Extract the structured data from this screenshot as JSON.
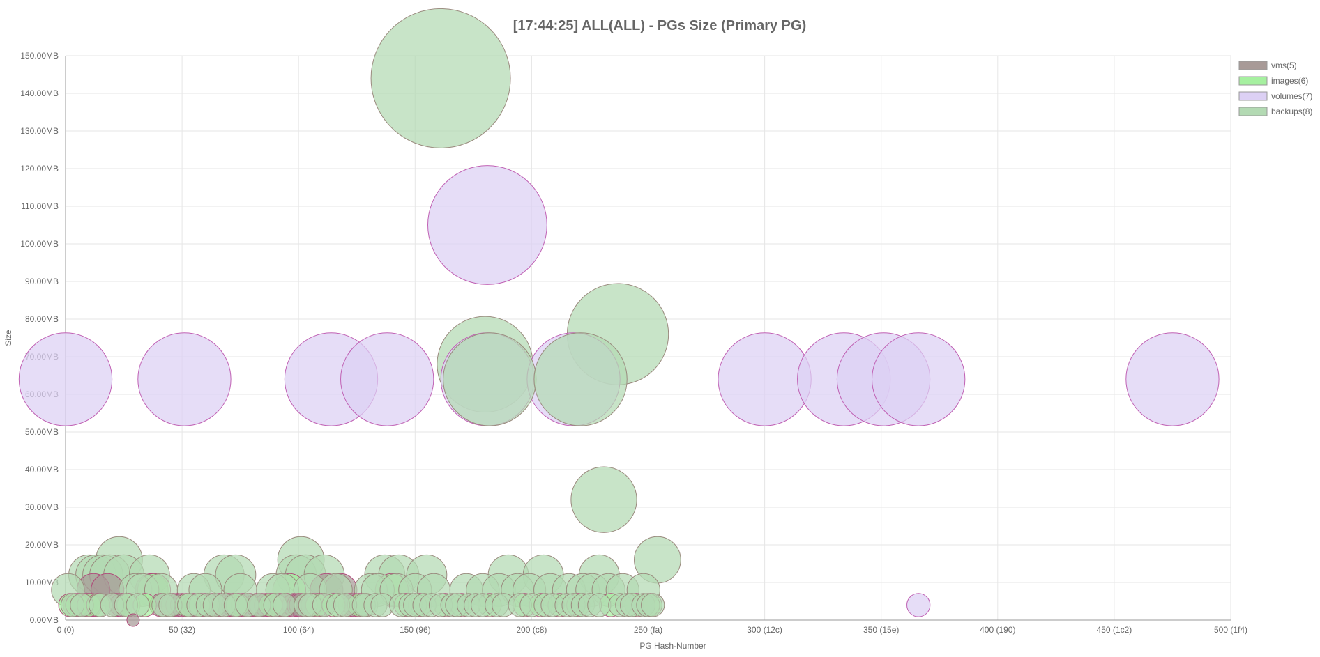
{
  "chart_data": {
    "type": "scatter",
    "subtype": "bubble",
    "title": "[17:44:25]  ALL(ALL) - PGs Size (Primary PG)",
    "xlabel": "PG Hash-Number",
    "ylabel": "Size",
    "xlim": [
      0,
      500
    ],
    "ylim": [
      0,
      150
    ],
    "x_ticks": [
      {
        "value": 0,
        "label": "0 (0)"
      },
      {
        "value": 50,
        "label": "50 (32)"
      },
      {
        "value": 100,
        "label": "100 (64)"
      },
      {
        "value": 150,
        "label": "150 (96)"
      },
      {
        "value": 200,
        "label": "200 (c8)"
      },
      {
        "value": 250,
        "label": "250 (fa)"
      },
      {
        "value": 300,
        "label": "300 (12c)"
      },
      {
        "value": 350,
        "label": "350 (15e)"
      },
      {
        "value": 400,
        "label": "400 (190)"
      },
      {
        "value": 450,
        "label": "450 (1c2)"
      },
      {
        "value": 500,
        "label": "500 (1f4)"
      }
    ],
    "y_ticks": [
      {
        "value": 0,
        "label": "0.00MB"
      },
      {
        "value": 10,
        "label": "10.00MB"
      },
      {
        "value": 20,
        "label": "20.00MB"
      },
      {
        "value": 30,
        "label": "30.00MB"
      },
      {
        "value": 40,
        "label": "40.00MB"
      },
      {
        "value": 50,
        "label": "50.00MB"
      },
      {
        "value": 60,
        "label": "60.00MB"
      },
      {
        "value": 70,
        "label": "70.00MB"
      },
      {
        "value": 80,
        "label": "80.00MB"
      },
      {
        "value": 90,
        "label": "90.00MB"
      },
      {
        "value": 100,
        "label": "100.00MB"
      },
      {
        "value": 110,
        "label": "110.00MB"
      },
      {
        "value": 120,
        "label": "120.00MB"
      },
      {
        "value": 130,
        "label": "130.00MB"
      },
      {
        "value": 140,
        "label": "140.00MB"
      },
      {
        "value": 150,
        "label": "150.00MB"
      }
    ],
    "grid": true,
    "legend_position": "top-right",
    "series": [
      {
        "name": "vms(5)",
        "fill": "#a89a97",
        "stroke": "#b04a7a",
        "points": [
          [
            4,
            4
          ],
          [
            6,
            4
          ],
          [
            8,
            4
          ],
          [
            9,
            4
          ],
          [
            11,
            4
          ],
          [
            12,
            8
          ],
          [
            18,
            8
          ],
          [
            22,
            4
          ],
          [
            24,
            4
          ],
          [
            29,
            0
          ],
          [
            37,
            8
          ],
          [
            41,
            4
          ],
          [
            46,
            4
          ],
          [
            48,
            4
          ],
          [
            50,
            4
          ],
          [
            55,
            4
          ],
          [
            60,
            4
          ],
          [
            63,
            4
          ],
          [
            66,
            4
          ],
          [
            70,
            4
          ],
          [
            72,
            4
          ],
          [
            76,
            4
          ],
          [
            79,
            4
          ],
          [
            82,
            4
          ],
          [
            84,
            4
          ],
          [
            86,
            4
          ],
          [
            89,
            4
          ],
          [
            92,
            4
          ],
          [
            95,
            4
          ],
          [
            98,
            4
          ],
          [
            100,
            4
          ],
          [
            101,
            4
          ],
          [
            106,
            4
          ],
          [
            110,
            4
          ],
          [
            112,
            8
          ],
          [
            118,
            8
          ],
          [
            122,
            4
          ],
          [
            124,
            4
          ],
          [
            127,
            4
          ]
        ]
      },
      {
        "name": "images(6)",
        "fill": "#a6f0a0",
        "stroke": "#b04a7a",
        "points": [
          [
            2,
            4
          ],
          [
            5,
            4
          ],
          [
            10,
            4
          ],
          [
            14,
            4
          ],
          [
            27,
            4
          ],
          [
            34,
            4
          ],
          [
            38,
            8
          ],
          [
            52,
            4
          ],
          [
            58,
            4
          ],
          [
            74,
            4
          ],
          [
            88,
            4
          ],
          [
            96,
            8
          ],
          [
            108,
            4
          ],
          [
            115,
            4
          ],
          [
            126,
            4
          ],
          [
            140,
            8
          ],
          [
            146,
            4
          ],
          [
            152,
            4
          ],
          [
            163,
            4
          ],
          [
            170,
            4
          ],
          [
            182,
            4
          ],
          [
            197,
            4
          ],
          [
            204,
            4
          ],
          [
            212,
            4
          ],
          [
            220,
            4
          ],
          [
            234,
            4
          ],
          [
            245,
            4
          ],
          [
            251,
            4
          ]
        ]
      },
      {
        "name": "volumes(7)",
        "fill": "#dcd0f4",
        "stroke": "#c061b4",
        "points": [
          [
            0,
            64
          ],
          [
            51,
            64
          ],
          [
            114,
            64
          ],
          [
            138,
            64
          ],
          [
            181,
            105
          ],
          [
            181,
            64
          ],
          [
            218,
            64
          ],
          [
            300,
            64
          ],
          [
            334,
            64
          ],
          [
            351,
            64
          ],
          [
            366,
            64
          ],
          [
            475,
            64
          ],
          [
            366,
            4
          ]
        ]
      },
      {
        "name": "backups(8)",
        "fill": "#b3dab3",
        "stroke": "#9a8a7e",
        "points": [
          [
            161,
            144
          ],
          [
            237,
            76
          ],
          [
            180,
            68
          ],
          [
            182,
            64
          ],
          [
            221,
            64
          ],
          [
            231,
            32
          ],
          [
            23,
            16
          ],
          [
            101,
            16
          ],
          [
            254,
            16
          ],
          [
            1,
            8
          ],
          [
            10,
            12
          ],
          [
            13,
            12
          ],
          [
            16,
            12
          ],
          [
            19,
            12
          ],
          [
            25,
            12
          ],
          [
            36,
            12
          ],
          [
            30,
            8
          ],
          [
            33,
            8
          ],
          [
            41,
            8
          ],
          [
            55,
            8
          ],
          [
            60,
            8
          ],
          [
            68,
            12
          ],
          [
            73,
            12
          ],
          [
            75,
            8
          ],
          [
            89,
            8
          ],
          [
            93,
            8
          ],
          [
            99,
            12
          ],
          [
            103,
            12
          ],
          [
            105,
            8
          ],
          [
            111,
            12
          ],
          [
            116,
            8
          ],
          [
            129,
            4
          ],
          [
            131,
            8
          ],
          [
            134,
            8
          ],
          [
            137,
            12
          ],
          [
            142,
            8
          ],
          [
            143,
            12
          ],
          [
            150,
            8
          ],
          [
            155,
            12
          ],
          [
            158,
            8
          ],
          [
            172,
            8
          ],
          [
            179,
            8
          ],
          [
            186,
            8
          ],
          [
            190,
            12
          ],
          [
            194,
            8
          ],
          [
            199,
            8
          ],
          [
            205,
            12
          ],
          [
            208,
            8
          ],
          [
            216,
            8
          ],
          [
            222,
            8
          ],
          [
            226,
            8
          ],
          [
            229,
            12
          ],
          [
            233,
            8
          ],
          [
            239,
            8
          ],
          [
            248,
            8
          ],
          [
            3,
            4
          ],
          [
            7,
            4
          ],
          [
            15,
            4
          ],
          [
            20,
            4
          ],
          [
            26,
            4
          ],
          [
            31,
            4
          ],
          [
            42,
            4
          ],
          [
            45,
            4
          ],
          [
            53,
            4
          ],
          [
            57,
            4
          ],
          [
            61,
            4
          ],
          [
            64,
            4
          ],
          [
            68,
            4
          ],
          [
            73,
            4
          ],
          [
            78,
            4
          ],
          [
            83,
            4
          ],
          [
            90,
            4
          ],
          [
            94,
            4
          ],
          [
            103,
            4
          ],
          [
            105,
            4
          ],
          [
            111,
            4
          ],
          [
            117,
            4
          ],
          [
            120,
            4
          ],
          [
            128,
            4
          ],
          [
            133,
            4
          ],
          [
            136,
            4
          ],
          [
            144,
            4
          ],
          [
            148,
            4
          ],
          [
            150,
            4
          ],
          [
            154,
            4
          ],
          [
            157,
            4
          ],
          [
            161,
            4
          ],
          [
            166,
            4
          ],
          [
            168,
            4
          ],
          [
            173,
            4
          ],
          [
            176,
            4
          ],
          [
            179,
            4
          ],
          [
            185,
            4
          ],
          [
            188,
            4
          ],
          [
            195,
            4
          ],
          [
            200,
            4
          ],
          [
            206,
            4
          ],
          [
            209,
            4
          ],
          [
            215,
            4
          ],
          [
            218,
            4
          ],
          [
            222,
            4
          ],
          [
            225,
            4
          ],
          [
            229,
            4
          ],
          [
            238,
            4
          ],
          [
            241,
            4
          ],
          [
            243,
            4
          ],
          [
            248,
            4
          ],
          [
            250,
            4
          ],
          [
            252,
            4
          ]
        ]
      }
    ]
  }
}
